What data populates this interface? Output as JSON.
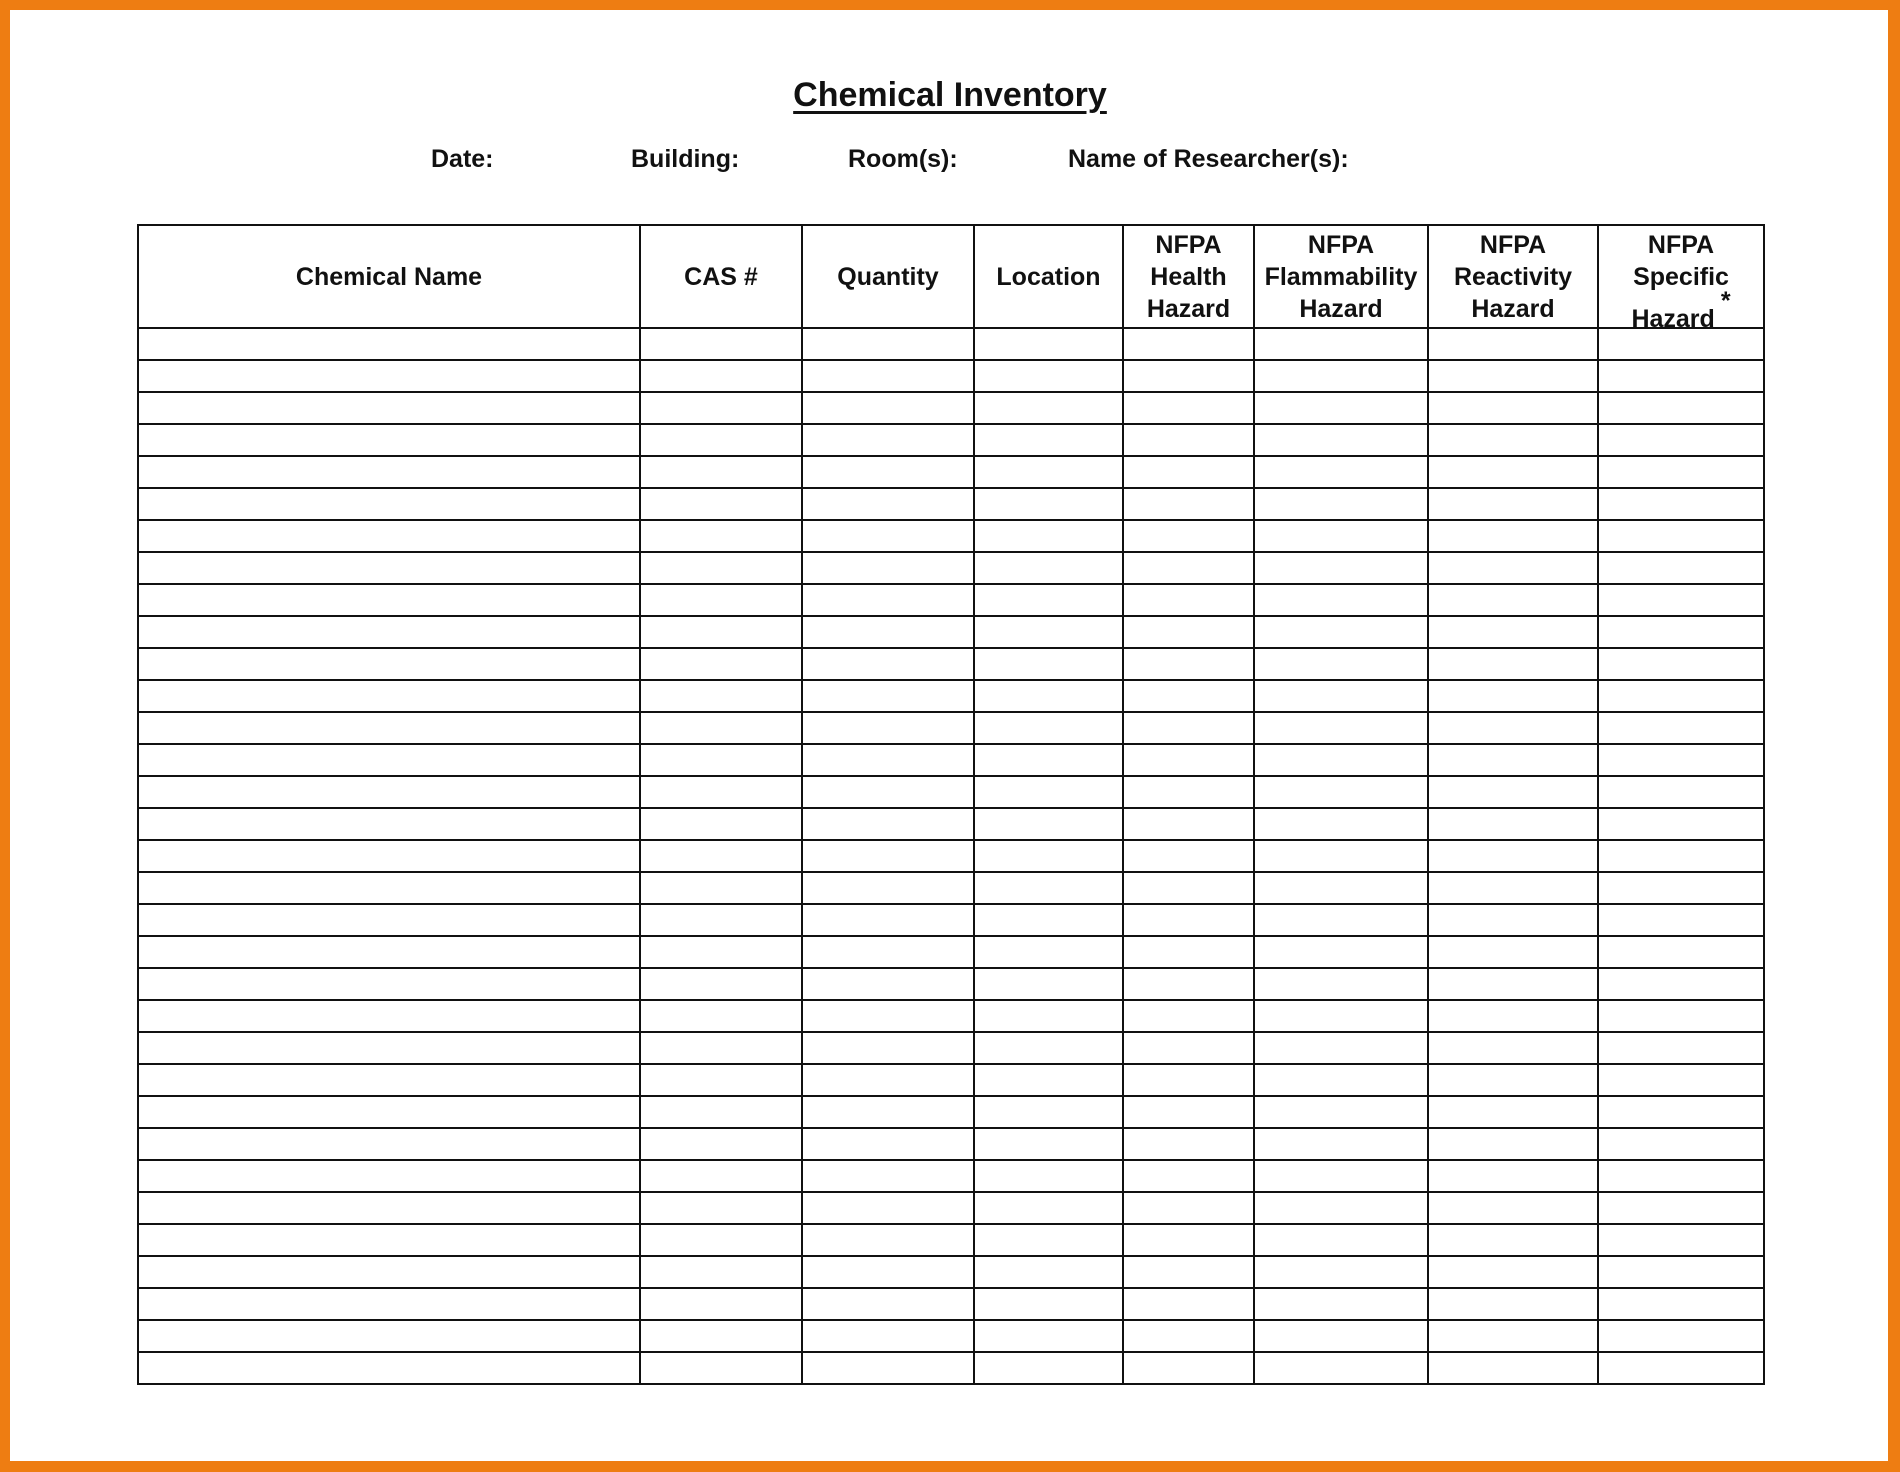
{
  "title": "Chemical Inventory",
  "fields": {
    "date": "Date:",
    "building": "Building:",
    "rooms": "Room(s):",
    "researchers": "Name of Researcher(s):"
  },
  "table": {
    "columns": [
      {
        "line1": "Chemical Name"
      },
      {
        "line1": "CAS #"
      },
      {
        "line1": "Quantity"
      },
      {
        "line1": "Location"
      },
      {
        "line1": "NFPA",
        "line2": "Health",
        "line3": "Hazard"
      },
      {
        "line1": "NFPA",
        "line2": "Flammability",
        "line3": "Hazard"
      },
      {
        "line1": "NFPA",
        "line2": "Reactivity",
        "line3": "Hazard"
      },
      {
        "line1": "NFPA",
        "line2": "Specific",
        "line3": "Hazard",
        "mark": "*"
      }
    ]
  },
  "colors": {
    "border": "#ee7d12",
    "lines": "#111111"
  }
}
